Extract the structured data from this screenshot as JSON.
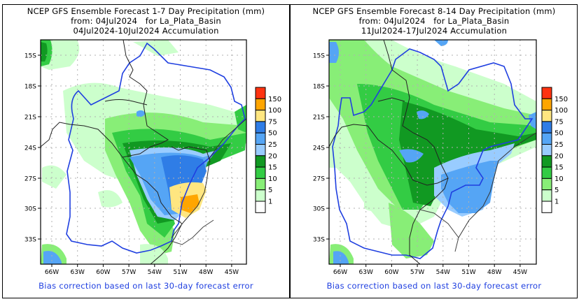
{
  "colors": {
    "frame": "#000000",
    "footer_text": "#1f3fe0",
    "river": "#1f3fe0",
    "border": "#222222",
    "grid": "#b0b0b0"
  },
  "legend": {
    "levels": [
      {
        "label": "1",
        "color": "#ffffff"
      },
      {
        "label": "5",
        "color": "#ccffcc"
      },
      {
        "label": "10",
        "color": "#88ee77"
      },
      {
        "label": "15",
        "color": "#33cc44"
      },
      {
        "label": "20",
        "color": "#119922"
      },
      {
        "label": "25",
        "color": "#99ccff"
      },
      {
        "label": "50",
        "color": "#55a5f5"
      },
      {
        "label": "75",
        "color": "#2f7de6"
      },
      {
        "label": "100",
        "color": "#ffe680"
      },
      {
        "label": "150",
        "color": "#ffa500"
      },
      {
        "label": "",
        "color": "#ff3311"
      }
    ],
    "tick_labels": [
      "1",
      "5",
      "10",
      "15",
      "20",
      "25",
      "50",
      "75",
      "100",
      "150"
    ]
  },
  "axes": {
    "lat_labels": [
      "15S",
      "18S",
      "21S",
      "24S",
      "27S",
      "30S",
      "33S"
    ],
    "lon_labels": [
      "66W",
      "63W",
      "60W",
      "57W",
      "54W",
      "51W",
      "48W",
      "45W"
    ]
  },
  "panels": [
    {
      "id": "week1",
      "title_line1": "NCEP GFS Ensemble Forecast 1-7 Day Precipitation (mm)",
      "title_line2": "from: 04Jul2024   for La_Plata_Basin",
      "title_line3": "04Jul2024-10Jul2024 Accumulation",
      "footer": "Bias correction based on last 30-day forecast error"
    },
    {
      "id": "week2",
      "title_line1": "NCEP GFS Ensemble Forecast 8-14 Day Precipitation (mm)",
      "title_line2": "from: 04Jul2024   for La_Plata_Basin",
      "title_line3": "11Jul2024-17Jul2024 Accumulation",
      "footer": "Bias correction based on last 30-day forecast error"
    }
  ]
}
